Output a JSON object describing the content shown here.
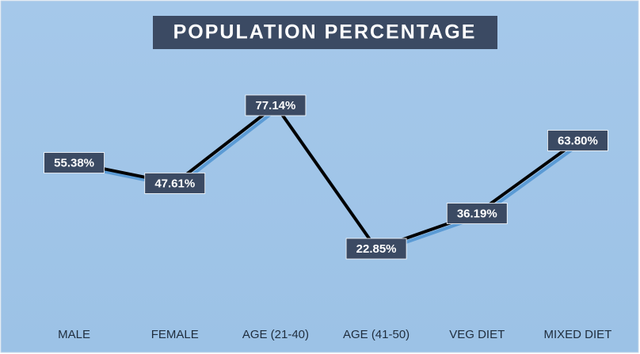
{
  "chart_data": {
    "type": "line",
    "title": "POPULATION PERCENTAGE",
    "categories": [
      "MALE",
      "FEMALE",
      "AGE (21-40)",
      "AGE (41-50)",
      "VEG DIET",
      "MIXED DIET"
    ],
    "values": [
      55.38,
      47.61,
      77.14,
      22.85,
      36.19,
      63.8
    ],
    "value_labels": [
      "55.38%",
      "47.61%",
      "77.14%",
      "22.85%",
      "36.19%",
      "63.80%"
    ],
    "color": "#000000"
  }
}
